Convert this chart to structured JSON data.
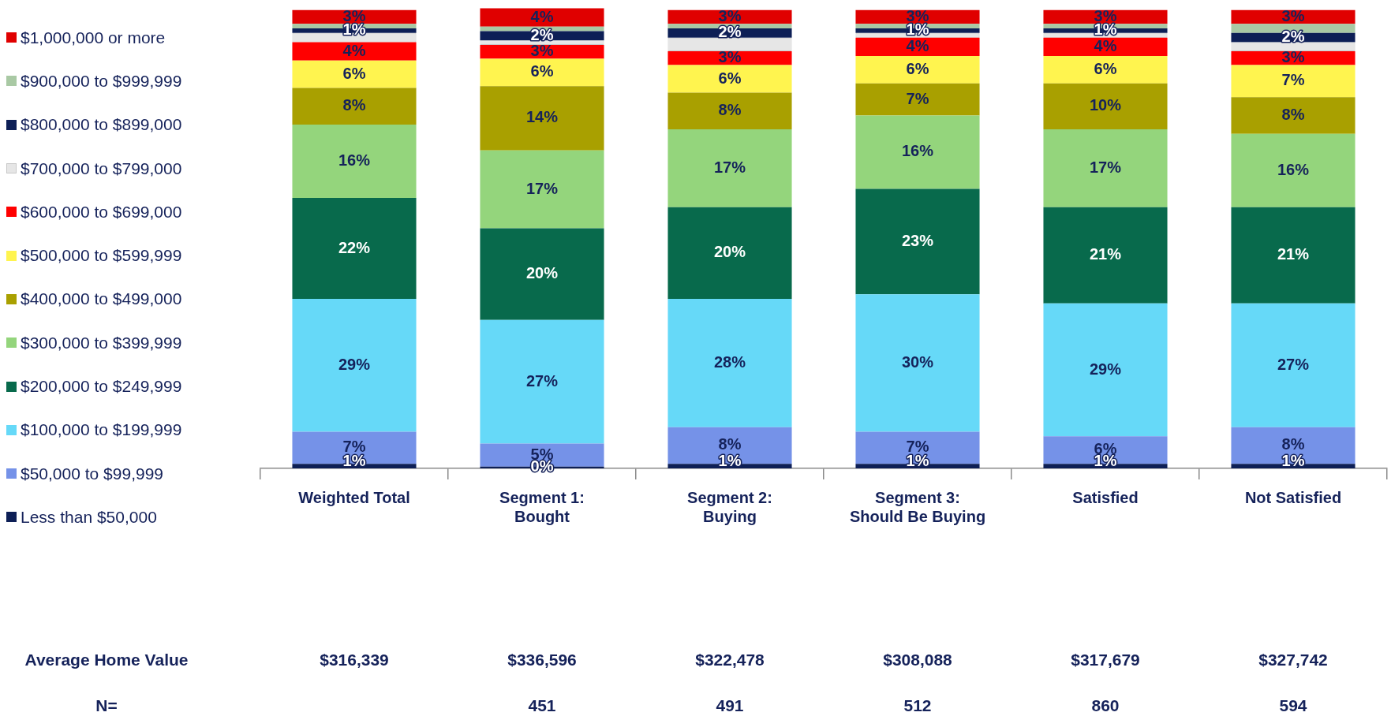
{
  "chart_data": {
    "type": "bar",
    "stacked": true,
    "legend": "left",
    "tick_labels": "x",
    "ylim": [
      0,
      101
    ],
    "categories": [
      "Weighted Total",
      "Segment 1:\nBought",
      "Segment 2:\nBuying",
      "Segment 3:\nShould Be Buying",
      "Satisfied",
      "Not Satisfied"
    ],
    "series": [
      {
        "name": "Less than $50,000",
        "color": "#0d1f56",
        "values": [
          1,
          0.4,
          1,
          1,
          1,
          1
        ],
        "value_labels": [
          "1%",
          "0%",
          "1%",
          "1%",
          "1%",
          "1%"
        ]
      },
      {
        "name": "$50,000 to $99,999",
        "color": "#7592e8",
        "values": [
          7,
          5,
          8,
          7,
          6,
          8
        ],
        "value_labels": [
          "7%",
          "5%",
          "8%",
          "7%",
          "6%",
          "8%"
        ]
      },
      {
        "name": "$100,000 to $199,999",
        "color": "#66d9f8",
        "values": [
          29,
          27,
          28,
          30,
          29,
          27
        ],
        "value_labels": [
          "29%",
          "27%",
          "28%",
          "30%",
          "29%",
          "27%"
        ]
      },
      {
        "name": "$200,000 to $249,999",
        "color": "#086a4c",
        "values": [
          22,
          20,
          20,
          23,
          21,
          21
        ],
        "value_labels": [
          "22%",
          "20%",
          "20%",
          "23%",
          "21%",
          "21%"
        ]
      },
      {
        "name": "$300,000 to $399,999",
        "color": "#94d57c",
        "values": [
          16,
          17,
          17,
          16,
          17,
          16
        ],
        "value_labels": [
          "16%",
          "17%",
          "17%",
          "16%",
          "17%",
          "16%"
        ]
      },
      {
        "name": "$400,000 to $499,000",
        "color": "#a9a000",
        "values": [
          8,
          14,
          8,
          7,
          10,
          8
        ],
        "value_labels": [
          "8%",
          "14%",
          "8%",
          "7%",
          "10%",
          "8%"
        ]
      },
      {
        "name": "$500,000 to $599,999",
        "color": "#fff44f",
        "values": [
          6,
          6,
          6,
          6,
          6,
          7
        ],
        "value_labels": [
          "6%",
          "6%",
          "6%",
          "6%",
          "6%",
          "7%"
        ]
      },
      {
        "name": "$600,000 to $699,000",
        "color": "#ff0000",
        "values": [
          4,
          3,
          3,
          4,
          4,
          3
        ],
        "value_labels": [
          "4%",
          "3%",
          "3%",
          "4%",
          "4%",
          "3%"
        ]
      },
      {
        "name": "$700,000 to $799,000",
        "color": "#e6e6e6",
        "values": [
          2,
          1,
          3,
          1,
          1,
          2
        ]
      },
      {
        "name": "$800,000 to $899,000",
        "color": "#0d1f56",
        "values": [
          1,
          2,
          2,
          1,
          1,
          2
        ],
        "value_labels": [
          "1%",
          "2%",
          "2%",
          "1%",
          "1%",
          "2%"
        ]
      },
      {
        "name": "$900,000 to $999,999",
        "color": "#a9c9a4",
        "values": [
          1,
          1,
          1,
          1,
          1,
          2
        ]
      },
      {
        "name": "$1,000,000 or more",
        "color": "#e00000",
        "values": [
          3,
          4,
          3,
          3,
          3,
          3
        ],
        "value_labels": [
          "3%",
          "4%",
          "3%",
          "3%",
          "3%",
          "3%"
        ]
      }
    ],
    "annotations": [
      "Average Home Value",
      "$316,339",
      "$336,596",
      "$322,478",
      "$308,088",
      "$317,679",
      "$327,742",
      "N=",
      "451",
      "491",
      "512",
      "860",
      "594"
    ]
  }
}
